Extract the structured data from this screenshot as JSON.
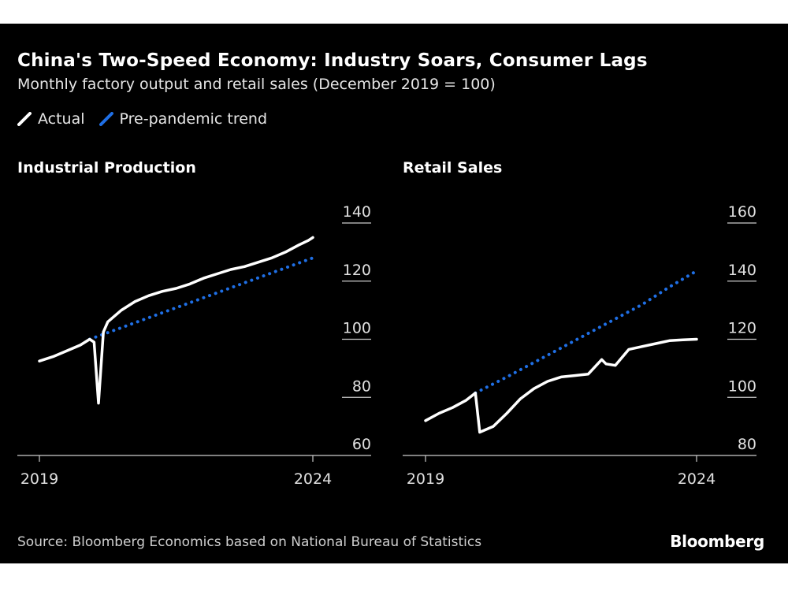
{
  "header": {
    "title": "China's Two-Speed Economy: Industry Soars, Consumer Lags",
    "subtitle": "Monthly factory output and retail sales (December 2019 = 100)"
  },
  "legend": {
    "actual": "Actual",
    "trend": "Pre-pandemic trend"
  },
  "colors": {
    "background": "#000000",
    "actual": "#ffffff",
    "trend": "#1f6fe5"
  },
  "footer": {
    "source": "Source: Bloomberg Economics based on National Bureau of Statistics",
    "brand": "Bloomberg"
  },
  "chart_data": [
    {
      "type": "line",
      "title": "Industrial Production",
      "xlabel": "",
      "ylabel": "",
      "xlim": [
        2019.0,
        2024.0
      ],
      "ylim": [
        60,
        140
      ],
      "yticks": [
        60,
        80,
        100,
        120,
        140
      ],
      "xticks": [
        {
          "value": 2019.0,
          "label": "2019"
        },
        {
          "value": 2024.0,
          "label": "2024"
        }
      ],
      "grid": false,
      "series": [
        {
          "name": "Actual",
          "style": "solid",
          "x": [
            2019.0,
            2019.25,
            2019.5,
            2019.75,
            2019.92,
            2020.0,
            2020.08,
            2020.17,
            2020.25,
            2020.5,
            2020.75,
            2021.0,
            2021.25,
            2021.5,
            2021.75,
            2022.0,
            2022.25,
            2022.5,
            2022.75,
            2023.0,
            2023.25,
            2023.5,
            2023.75,
            2023.92,
            2024.0
          ],
          "y": [
            92.5,
            94.0,
            96.0,
            98.0,
            100.0,
            99.0,
            78.0,
            102.5,
            106.0,
            110.0,
            113.0,
            115.0,
            116.5,
            117.5,
            119.0,
            121.0,
            122.5,
            124.0,
            125.0,
            126.5,
            128.0,
            130.0,
            132.5,
            134.0,
            135.0
          ]
        },
        {
          "name": "Pre-pandemic trend",
          "style": "dotted",
          "x": [
            2019.92,
            2024.0
          ],
          "y": [
            100.0,
            128.0
          ]
        }
      ]
    },
    {
      "type": "line",
      "title": "Retail Sales",
      "xlabel": "",
      "ylabel": "",
      "xlim": [
        2019.0,
        2024.0
      ],
      "ylim": [
        80,
        160
      ],
      "yticks": [
        80,
        100,
        120,
        140,
        160
      ],
      "xticks": [
        {
          "value": 2019.0,
          "label": "2019"
        },
        {
          "value": 2024.0,
          "label": "2024"
        }
      ],
      "grid": false,
      "series": [
        {
          "name": "Actual",
          "style": "solid",
          "x": [
            2019.0,
            2019.25,
            2019.5,
            2019.75,
            2019.92,
            2020.0,
            2020.25,
            2020.5,
            2020.75,
            2021.0,
            2021.25,
            2021.5,
            2021.75,
            2022.0,
            2022.25,
            2022.33,
            2022.5,
            2022.75,
            2023.0,
            2023.25,
            2023.5,
            2023.75,
            2024.0
          ],
          "y": [
            92.0,
            94.5,
            96.5,
            99.0,
            101.5,
            88.0,
            90.0,
            94.5,
            99.5,
            103.0,
            105.5,
            107.0,
            107.5,
            108.0,
            113.0,
            111.5,
            111.0,
            116.5,
            117.5,
            118.5,
            119.5,
            119.8,
            120.0
          ]
        },
        {
          "name": "Pre-pandemic trend",
          "style": "dotted",
          "x": [
            2019.92,
            2020.5,
            2021.0,
            2021.5,
            2022.0,
            2022.5,
            2023.0,
            2023.5,
            2024.0
          ],
          "y": [
            101.5,
            107.0,
            112.0,
            117.0,
            122.0,
            127.0,
            132.0,
            138.0,
            143.5
          ]
        }
      ]
    }
  ]
}
